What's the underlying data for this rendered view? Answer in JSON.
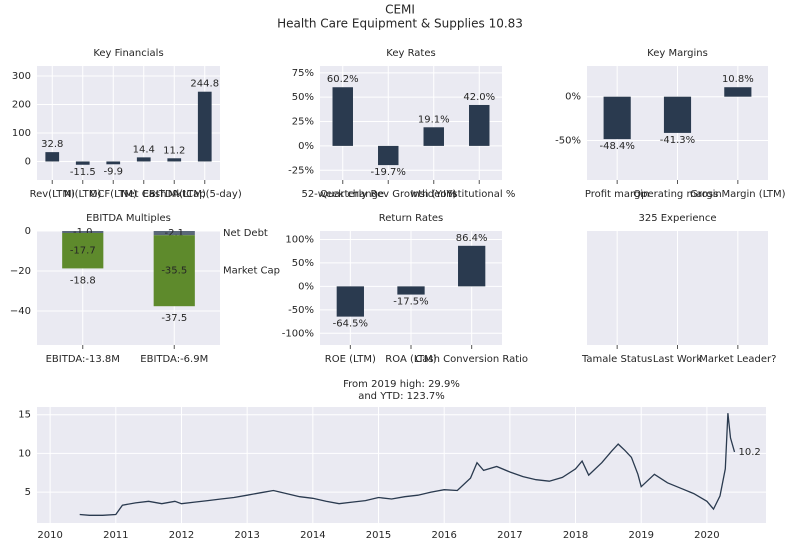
{
  "header": {
    "title": "CEMI",
    "subtitle": "Health Care Equipment & Supplies 10.83"
  },
  "chart_data": [
    {
      "type": "bar",
      "title": "Key Financials",
      "categories": [
        "Rev(LTM)",
        "NI(LTM)",
        "OCF(LTM)",
        "Net Cash",
        "EBITDA(LTM)",
        "MktCap(5-day)"
      ],
      "values": [
        32.8,
        -11.5,
        -9.9,
        14.4,
        11.2,
        244.8
      ],
      "color": "#2a3a4f",
      "ylim": [
        -65,
        335
      ],
      "yticks": [
        0,
        100,
        200,
        300
      ]
    },
    {
      "type": "bar",
      "title": "Key Rates",
      "categories": [
        "52-week change",
        "Quarterly Rev Growth (YoY)",
        "Insider %",
        "Institutional %"
      ],
      "values": [
        60.2,
        -19.7,
        19.1,
        42.0
      ],
      "value_labels": [
        "60.2%",
        "-19.7%",
        "19.1%",
        "42.0%"
      ],
      "color": "#2a3a4f",
      "ylim": [
        -35,
        82
      ],
      "yticks": [
        {
          "value": -25,
          "label": "-25%"
        },
        {
          "value": 0,
          "label": "0%"
        },
        {
          "value": 25,
          "label": "25%"
        },
        {
          "value": 50,
          "label": "50%"
        },
        {
          "value": 75,
          "label": "75%"
        }
      ]
    },
    {
      "type": "bar",
      "title": "Key Margins",
      "categories": [
        "Profit margin",
        "Operating margin",
        "Gross Margin (LTM)"
      ],
      "values": [
        -48.4,
        -41.3,
        10.8
      ],
      "value_labels": [
        "-48.4%",
        "-41.3%",
        "10.8%"
      ],
      "color": "#2a3a4f",
      "ylim": [
        -95,
        35
      ],
      "yticks": [
        {
          "value": -50,
          "label": "-50%"
        },
        {
          "value": 0,
          "label": "0%"
        }
      ]
    },
    {
      "type": "bar",
      "title": "EBITDA Multiples",
      "categories": [
        "EBITDA:-13.8M",
        "EBITDA:-6.9M"
      ],
      "series": [
        {
          "name": "Net Debt",
          "color": "#5a6878",
          "values": [
            -1.0,
            -2.1
          ],
          "value_labels": [
            "-1.0",
            "-2.1"
          ]
        },
        {
          "name": "Market Cap",
          "color": "#5e8a2c",
          "values": [
            -17.7,
            -35.5
          ],
          "value_labels": [
            "-17.7",
            "-35.5"
          ]
        }
      ],
      "total_labels": [
        "-18.8",
        "-37.5"
      ],
      "ylim": [
        -57,
        0
      ],
      "yticks": [
        0,
        {
          "value": -20,
          "label": "−20"
        },
        {
          "value": -40,
          "label": "−40"
        }
      ]
    },
    {
      "type": "bar",
      "title": "Return Rates",
      "categories": [
        "ROE (LTM)",
        "ROA (LTM)",
        "Cash Conversion Ratio"
      ],
      "values": [
        -64.5,
        -17.5,
        86.4
      ],
      "value_labels": [
        "-64.5%",
        "-17.5%",
        "86.4%"
      ],
      "color": "#2a3a4f",
      "ylim": [
        -125,
        118
      ],
      "yticks": [
        {
          "value": -100,
          "label": "-100%"
        },
        {
          "value": -50,
          "label": "-50%"
        },
        {
          "value": 0,
          "label": "0%"
        },
        {
          "value": 50,
          "label": "50%"
        },
        {
          "value": 100,
          "label": "100%"
        }
      ]
    },
    {
      "type": "bar",
      "title": "325 Experience",
      "categories": [
        "Tamale Status",
        "Last Work",
        "Market Leader?"
      ]
    },
    {
      "type": "line",
      "title": "From 2019 high: 29.9%",
      "subtitle": "and YTD: 123.7%",
      "x": [
        2010.45,
        2010.6,
        2010.8,
        2011.0,
        2011.1,
        2011.3,
        2011.5,
        2011.7,
        2011.9,
        2012.0,
        2012.2,
        2012.4,
        2012.6,
        2012.8,
        2013.0,
        2013.2,
        2013.4,
        2013.6,
        2013.8,
        2014.0,
        2014.2,
        2014.4,
        2014.6,
        2014.8,
        2015.0,
        2015.2,
        2015.4,
        2015.6,
        2015.8,
        2016.0,
        2016.2,
        2016.4,
        2016.5,
        2016.6,
        2016.8,
        2017.0,
        2017.2,
        2017.4,
        2017.6,
        2017.8,
        2018.0,
        2018.1,
        2018.2,
        2018.4,
        2018.55,
        2018.65,
        2018.75,
        2018.85,
        2018.95,
        2019.0,
        2019.2,
        2019.4,
        2019.6,
        2019.8,
        2020.0,
        2020.1,
        2020.2,
        2020.28,
        2020.32,
        2020.36,
        2020.42
      ],
      "values": [
        2.1,
        2.0,
        2.0,
        2.1,
        3.3,
        3.6,
        3.8,
        3.5,
        3.8,
        3.5,
        3.7,
        3.9,
        4.1,
        4.3,
        4.6,
        4.9,
        5.2,
        4.8,
        4.4,
        4.2,
        3.8,
        3.5,
        3.7,
        3.9,
        4.3,
        4.1,
        4.4,
        4.6,
        5.0,
        5.3,
        5.2,
        6.8,
        8.8,
        7.8,
        8.3,
        7.6,
        7.0,
        6.6,
        6.4,
        6.9,
        8.0,
        9.0,
        7.2,
        8.8,
        10.3,
        11.2,
        10.4,
        9.5,
        7.3,
        5.7,
        7.3,
        6.2,
        5.5,
        4.8,
        3.8,
        2.8,
        4.5,
        8.0,
        15.2,
        12.0,
        10.2
      ],
      "color": "#2a3a4f",
      "annotation": "10.2",
      "xlim": [
        2009.8,
        2020.9
      ],
      "xticks": [
        2010,
        2011,
        2012,
        2013,
        2014,
        2015,
        2016,
        2017,
        2018,
        2019,
        2020
      ],
      "ylim": [
        1,
        16
      ],
      "yticks": [
        5,
        10,
        15
      ]
    }
  ]
}
